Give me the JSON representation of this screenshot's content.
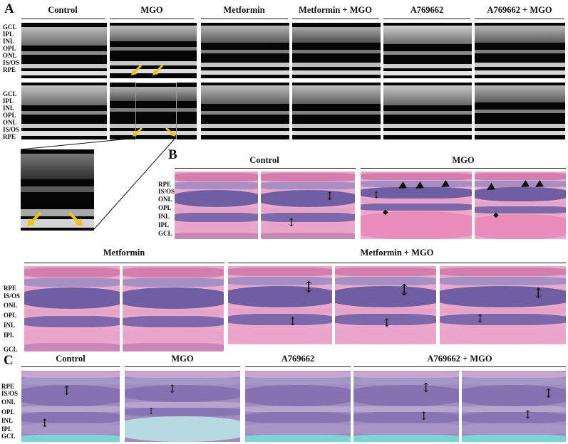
{
  "panels": {
    "A": {
      "letter": "A",
      "columns": [
        "Control",
        "MGO",
        "Metformin",
        "Metformin + MGO",
        "A769662",
        "A769662 + MGO"
      ],
      "layers_row1": [
        "GCL",
        "IPL",
        "INL",
        "OPL",
        "ONL",
        "IS/OS",
        "RPE"
      ],
      "layers_row2": [
        "GCL",
        "IPL",
        "INL",
        "OPL",
        "ONL",
        "IS/OS",
        "RPE"
      ]
    },
    "B": {
      "letter": "B",
      "top_groups": [
        "Control",
        "MGO"
      ],
      "top_layers": [
        "RPE",
        "IS/OS",
        "ONL",
        "OPL",
        "INL",
        "IPL",
        "GCL"
      ],
      "bottom_groups": [
        "Metformin",
        "Metformin + MGO"
      ],
      "bottom_layers": [
        "RPE",
        "IS/OS",
        "ONL",
        "OPL",
        "INL",
        "IPL",
        "GCL"
      ]
    },
    "C": {
      "letter": "C",
      "groups": [
        "Control",
        "MGO",
        "A769662",
        "A769662 + MGO"
      ],
      "layers": [
        "RPE",
        "IS/OS",
        "ONL",
        "OPL",
        "INL",
        "IPL",
        "GCL"
      ]
    }
  },
  "colors": {
    "oct_background": "#050505",
    "oct_signal": "#d8d8d8",
    "he_pink": "#e7a6c9",
    "he_purple": "#7b63a8",
    "pas_cyan": "#7fd3d6",
    "pas_purple": "#8d77b2",
    "arrow_yellow": "#f2c200"
  },
  "icons": {
    "oct_arrow": "yellow-arrow-icon",
    "double_arrow": "double-arrow-icon",
    "arrowhead": "arrowhead-icon",
    "diamond": "diamond-icon"
  }
}
